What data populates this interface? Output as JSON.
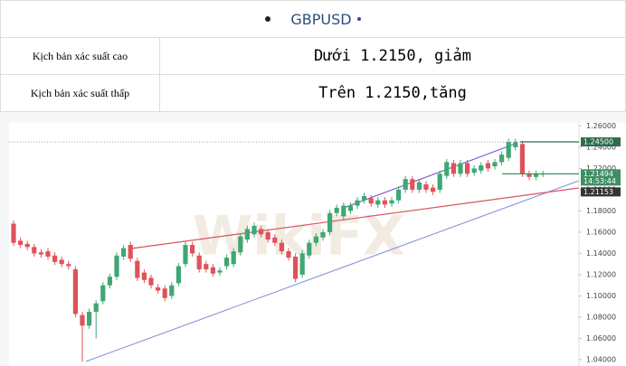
{
  "header": {
    "title": "GBPUSD"
  },
  "table": {
    "rows": [
      [
        "Kịch bản xác suất cao",
        "Dưới 1.2150, giảm"
      ],
      [
        "Kịch bản xác suất thấp",
        "Trên 1.2150,tăng"
      ]
    ]
  },
  "chart_data": {
    "type": "candlestick",
    "watermark": "WikiFX",
    "up_color": "#3fa773",
    "down_color": "#e0525a",
    "ylim": [
      1.034,
      1.268
    ],
    "yticks": [
      {
        "value": 1.26,
        "label": "1.26000"
      },
      {
        "value": 1.24,
        "label": "1.24000"
      },
      {
        "value": 1.22,
        "label": "1.22000"
      },
      {
        "value": 1.2,
        "label": "1.20000"
      },
      {
        "value": 1.18,
        "label": "1.18000"
      },
      {
        "value": 1.16,
        "label": "1.16000"
      },
      {
        "value": 1.14,
        "label": "1.14000"
      },
      {
        "value": 1.12,
        "label": "1.12000"
      },
      {
        "value": 1.1,
        "label": "1.10000"
      },
      {
        "value": 1.08,
        "label": "1.08000"
      },
      {
        "value": 1.06,
        "label": "1.06000"
      },
      {
        "value": 1.04,
        "label": "1.04000"
      }
    ],
    "price_labels": [
      {
        "value": 1.245,
        "label": "1.24500",
        "color": "#2f6b4e"
      },
      {
        "value": 1.21494,
        "label": "1.21494",
        "time": "14:53:44",
        "color": "#3f8f62"
      },
      {
        "value": 1.21153,
        "label": "1.21153",
        "color": "#333333"
      }
    ],
    "candles": [
      [
        1.168,
        1.171,
        1.147,
        1.15
      ],
      [
        1.152,
        1.155,
        1.145,
        1.148
      ],
      [
        1.149,
        1.152,
        1.143,
        1.146
      ],
      [
        1.146,
        1.149,
        1.137,
        1.14
      ],
      [
        1.141,
        1.144,
        1.136,
        1.139
      ],
      [
        1.142,
        1.145,
        1.134,
        1.137
      ],
      [
        1.138,
        1.141,
        1.129,
        1.132
      ],
      [
        1.134,
        1.137,
        1.127,
        1.13
      ],
      [
        1.13,
        1.133,
        1.125,
        1.128
      ],
      [
        1.125,
        1.128,
        1.08,
        1.083
      ],
      [
        1.082,
        1.085,
        1.038,
        1.072
      ],
      [
        1.072,
        1.088,
        1.069,
        1.085
      ],
      [
        1.085,
        1.096,
        1.06,
        1.093
      ],
      [
        1.095,
        1.113,
        1.092,
        1.11
      ],
      [
        1.11,
        1.121,
        1.107,
        1.118
      ],
      [
        1.118,
        1.141,
        1.115,
        1.138
      ],
      [
        1.137,
        1.148,
        1.134,
        1.145
      ],
      [
        1.148,
        1.151,
        1.132,
        1.135
      ],
      [
        1.133,
        1.136,
        1.114,
        1.117
      ],
      [
        1.122,
        1.125,
        1.112,
        1.115
      ],
      [
        1.117,
        1.12,
        1.107,
        1.11
      ],
      [
        1.108,
        1.111,
        1.102,
        1.105
      ],
      [
        1.107,
        1.11,
        1.095,
        1.098
      ],
      [
        1.1,
        1.113,
        1.097,
        1.11
      ],
      [
        1.112,
        1.131,
        1.109,
        1.128
      ],
      [
        1.13,
        1.151,
        1.127,
        1.148
      ],
      [
        1.148,
        1.151,
        1.137,
        1.14
      ],
      [
        1.138,
        1.141,
        1.122,
        1.125
      ],
      [
        1.13,
        1.133,
        1.122,
        1.125
      ],
      [
        1.127,
        1.13,
        1.118,
        1.121
      ],
      [
        1.122,
        1.127,
        1.119,
        1.124
      ],
      [
        1.128,
        1.139,
        1.125,
        1.136
      ],
      [
        1.13,
        1.145,
        1.127,
        1.142
      ],
      [
        1.141,
        1.159,
        1.138,
        1.156
      ],
      [
        1.153,
        1.166,
        1.15,
        1.163
      ],
      [
        1.158,
        1.169,
        1.155,
        1.166
      ],
      [
        1.163,
        1.166,
        1.155,
        1.158
      ],
      [
        1.16,
        1.163,
        1.15,
        1.153
      ],
      [
        1.155,
        1.158,
        1.147,
        1.15
      ],
      [
        1.15,
        1.153,
        1.139,
        1.142
      ],
      [
        1.142,
        1.145,
        1.133,
        1.136
      ],
      [
        1.137,
        1.14,
        1.113,
        1.116
      ],
      [
        1.12,
        1.143,
        1.117,
        1.14
      ],
      [
        1.138,
        1.153,
        1.135,
        1.15
      ],
      [
        1.15,
        1.159,
        1.147,
        1.156
      ],
      [
        1.155,
        1.163,
        1.152,
        1.16
      ],
      [
        1.16,
        1.181,
        1.157,
        1.178
      ],
      [
        1.178,
        1.186,
        1.175,
        1.183
      ],
      [
        1.175,
        1.188,
        1.172,
        1.185
      ],
      [
        1.18,
        1.188,
        1.177,
        1.185
      ],
      [
        1.185,
        1.193,
        1.182,
        1.19
      ],
      [
        1.19,
        1.197,
        1.187,
        1.194
      ],
      [
        1.192,
        1.195,
        1.184,
        1.187
      ],
      [
        1.186,
        1.193,
        1.183,
        1.19
      ],
      [
        1.19,
        1.193,
        1.183,
        1.186
      ],
      [
        1.187,
        1.193,
        1.184,
        1.19
      ],
      [
        1.19,
        1.203,
        1.187,
        1.2
      ],
      [
        1.2,
        1.213,
        1.197,
        1.21
      ],
      [
        1.21,
        1.213,
        1.197,
        1.2
      ],
      [
        1.2,
        1.21,
        1.197,
        1.207
      ],
      [
        1.205,
        1.208,
        1.197,
        1.2
      ],
      [
        1.202,
        1.205,
        1.195,
        1.198
      ],
      [
        1.2,
        1.218,
        1.197,
        1.215
      ],
      [
        1.213,
        1.229,
        1.21,
        1.226
      ],
      [
        1.225,
        1.228,
        1.212,
        1.215
      ],
      [
        1.215,
        1.228,
        1.212,
        1.225
      ],
      [
        1.225,
        1.228,
        1.212,
        1.215
      ],
      [
        1.216,
        1.223,
        1.213,
        1.22
      ],
      [
        1.218,
        1.226,
        1.215,
        1.223
      ],
      [
        1.225,
        1.228,
        1.217,
        1.22
      ],
      [
        1.222,
        1.229,
        1.219,
        1.226
      ],
      [
        1.226,
        1.236,
        1.223,
        1.233
      ],
      [
        1.23,
        1.248,
        1.227,
        1.245
      ],
      [
        1.24,
        1.248,
        1.237,
        1.245
      ],
      [
        1.243,
        1.246,
        1.212,
        1.215
      ],
      [
        1.215,
        1.218,
        1.209,
        1.212
      ],
      [
        1.212,
        1.218,
        1.209,
        1.215
      ],
      [
        1.215,
        1.218,
        1.212,
        1.215
      ]
    ]
  }
}
